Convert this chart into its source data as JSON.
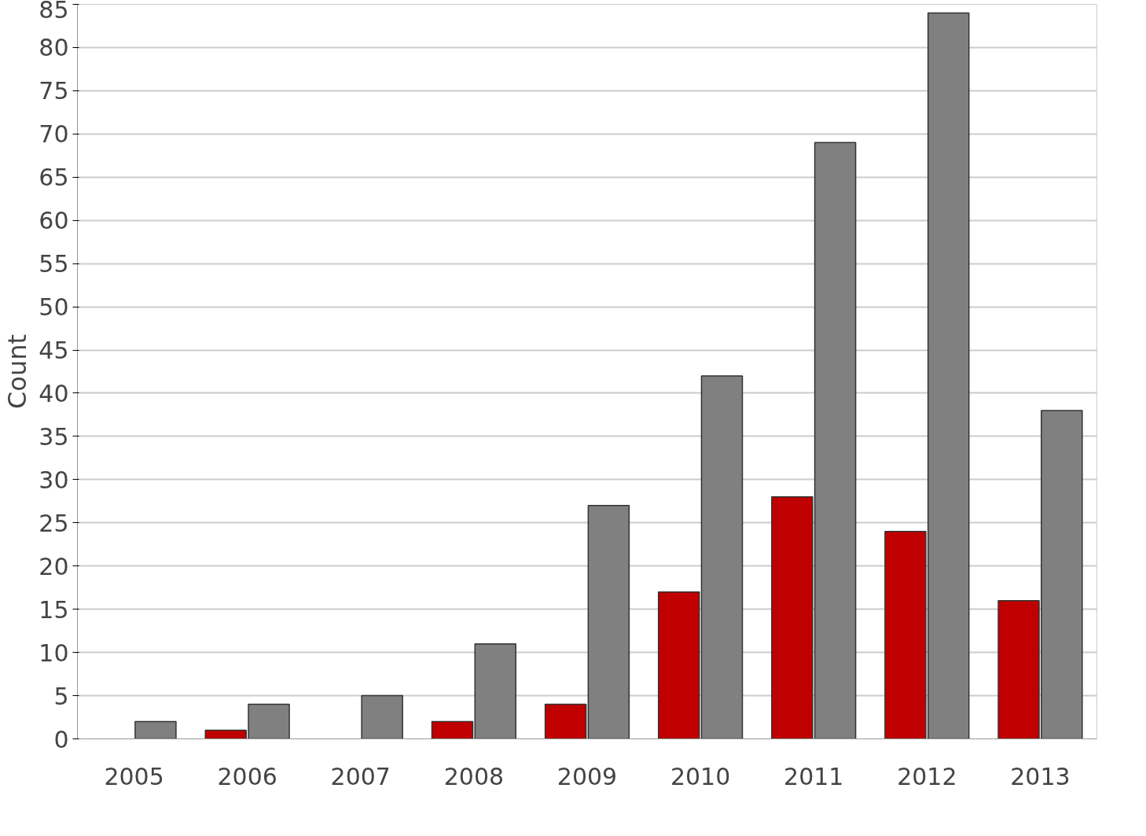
{
  "chart_data": {
    "type": "bar",
    "ylabel": "Count",
    "categories": [
      "2005",
      "2006",
      "2007",
      "2008",
      "2009",
      "2010",
      "2011",
      "2012",
      "2013"
    ],
    "series": [
      {
        "color": "#c00000",
        "values": [
          null,
          1,
          null,
          2,
          4,
          17,
          28,
          24,
          16
        ]
      },
      {
        "color": "#808080",
        "values": [
          2,
          4,
          5,
          11,
          27,
          42,
          69,
          84,
          38
        ]
      }
    ],
    "ylim": [
      0,
      85
    ],
    "yticks": [
      0,
      5,
      10,
      15,
      20,
      25,
      30,
      35,
      40,
      45,
      50,
      55,
      60,
      65,
      70,
      75,
      80,
      85
    ],
    "grid": "y"
  }
}
